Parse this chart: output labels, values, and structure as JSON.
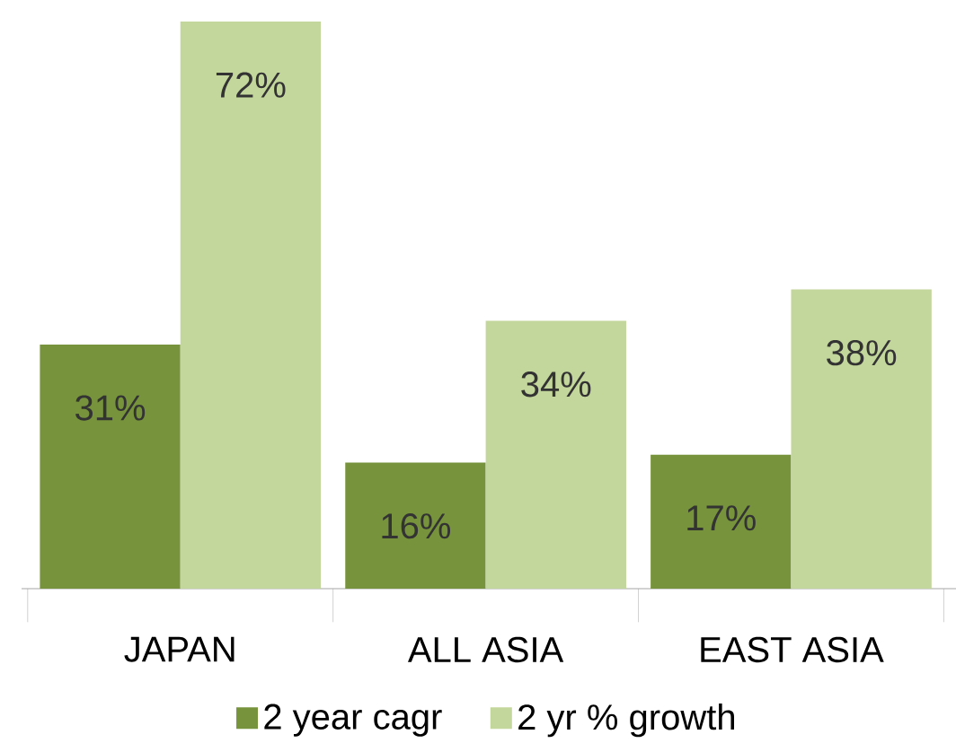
{
  "chart_data": {
    "type": "bar",
    "categories": [
      "JAPAN",
      "ALL ASIA",
      "EAST ASIA"
    ],
    "ylim": [
      0,
      72
    ],
    "tick_labels": "x",
    "legend": "bottom",
    "series": [
      {
        "name": "2 year cagr",
        "color": "#77933c",
        "values": [
          31,
          16,
          17
        ],
        "value_labels": [
          "31%",
          "16%",
          "17%"
        ]
      },
      {
        "name": "2 yr % growth",
        "color": "#c3d69b",
        "values": [
          72,
          34,
          38
        ],
        "value_labels": [
          "72%",
          "34%",
          "38%"
        ]
      }
    ]
  }
}
